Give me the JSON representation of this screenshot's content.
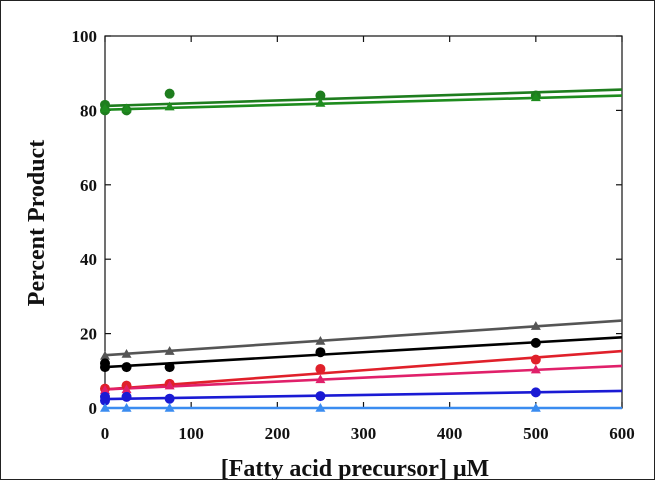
{
  "chart_data": {
    "type": "scatter",
    "title": "",
    "xlabel": "[Fatty acid precursor] μM",
    "ylabel": "Percent Product",
    "xlim": [
      0,
      600
    ],
    "ylim": [
      0,
      100
    ],
    "xticks": [
      0,
      100,
      200,
      300,
      400,
      500,
      600
    ],
    "yticks": [
      0,
      20,
      40,
      60,
      80,
      100
    ],
    "grid": false,
    "legend": "none",
    "series": [
      {
        "marker": "circle",
        "color": "#1e7d1e",
        "x": [
          0,
          0,
          25,
          75,
          250,
          500
        ],
        "y": [
          81.5,
          80.0,
          80.0,
          84.5,
          84.0,
          84.0
        ],
        "fit": [
          81.2,
          85.6
        ]
      },
      {
        "marker": "triangle",
        "color": "#1e8c1e",
        "x": [
          0,
          25,
          75,
          250,
          500
        ],
        "y": [
          80.5,
          80.5,
          81.0,
          82.0,
          83.5
        ],
        "fit": [
          80.2,
          84.0
        ]
      },
      {
        "marker": "triangle",
        "color": "#555555",
        "x": [
          0,
          25,
          75,
          250,
          500
        ],
        "y": [
          14.0,
          14.5,
          15.3,
          18.0,
          22.0
        ],
        "fit": [
          14.2,
          23.5
        ]
      },
      {
        "marker": "circle",
        "color": "#000000",
        "x": [
          0,
          0,
          25,
          75,
          250,
          500
        ],
        "y": [
          12.0,
          11.0,
          11.0,
          11.0,
          15.0,
          17.5
        ],
        "fit": [
          11.0,
          19.0
        ]
      },
      {
        "marker": "circle",
        "color": "#e0202a",
        "x": [
          0,
          25,
          75,
          250,
          500
        ],
        "y": [
          5.2,
          6.0,
          6.5,
          10.5,
          13.0
        ],
        "fit": [
          5.0,
          15.3
        ]
      },
      {
        "marker": "triangle",
        "color": "#e0206a",
        "x": [
          0,
          25,
          75,
          250,
          500
        ],
        "y": [
          4.8,
          5.0,
          6.0,
          7.7,
          10.3
        ],
        "fit": [
          5.0,
          11.3
        ]
      },
      {
        "marker": "circle",
        "color": "#1a1ad4",
        "x": [
          0,
          0,
          25,
          75,
          250,
          500
        ],
        "y": [
          3.0,
          2.0,
          3.0,
          2.5,
          3.2,
          4.2
        ],
        "fit": [
          2.4,
          4.6
        ]
      },
      {
        "marker": "triangle",
        "color": "#3a8cf0",
        "x": [
          0,
          25,
          75,
          250,
          500
        ],
        "y": [
          0.0,
          0.0,
          0.0,
          0.0,
          0.0
        ],
        "fit": [
          0.0,
          0.0
        ]
      }
    ]
  }
}
